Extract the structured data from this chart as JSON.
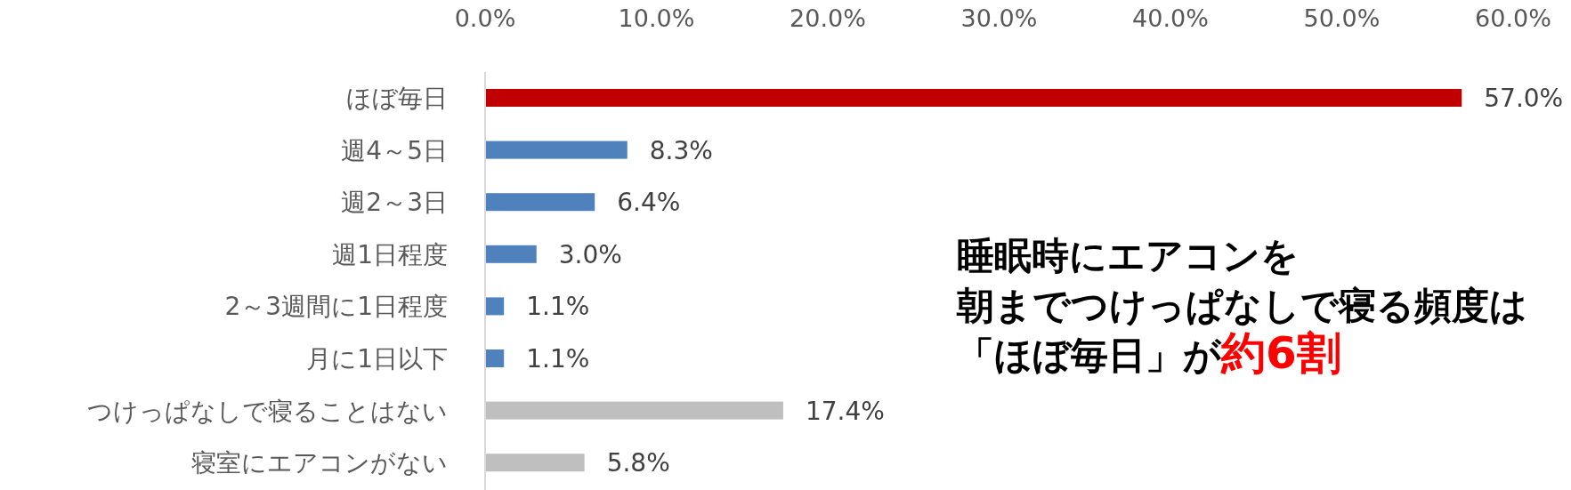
{
  "chart_data": {
    "type": "bar",
    "orientation": "horizontal",
    "categories": [
      "ほぼ毎日",
      "週4～5日",
      "週2～3日",
      "週1日程度",
      "2～3週間に1日程度",
      "月に1日以下",
      "つけっぱなしで寝ることはない",
      "寝室にエアコンがない"
    ],
    "values": [
      57.0,
      8.3,
      6.4,
      3.0,
      1.1,
      1.1,
      17.4,
      5.8
    ],
    "colors": [
      "#c00000",
      "#4f81bd",
      "#4f81bd",
      "#4f81bd",
      "#4f81bd",
      "#4f81bd",
      "#bfbfbf",
      "#bfbfbf"
    ],
    "value_labels": [
      "57.0%",
      "8.3%",
      "6.4%",
      "3.0%",
      "1.1%",
      "1.1%",
      "17.4%",
      "5.8%"
    ],
    "xlim": [
      0,
      60
    ],
    "xticks": [
      {
        "value": 0,
        "label": "0.0%"
      },
      {
        "value": 10,
        "label": "10.0%"
      },
      {
        "value": 20,
        "label": "20.0%"
      },
      {
        "value": 30,
        "label": "30.0%"
      },
      {
        "value": 40,
        "label": "40.0%"
      },
      {
        "value": 50,
        "label": "50.0%"
      },
      {
        "value": 60,
        "label": "60.0%"
      }
    ],
    "grid": false,
    "annotations": [
      "睡眠時にエアコンを",
      "朝までつけっぱなしで寝る頻度は",
      "「ほぼ毎日」が",
      "約6割"
    ]
  }
}
